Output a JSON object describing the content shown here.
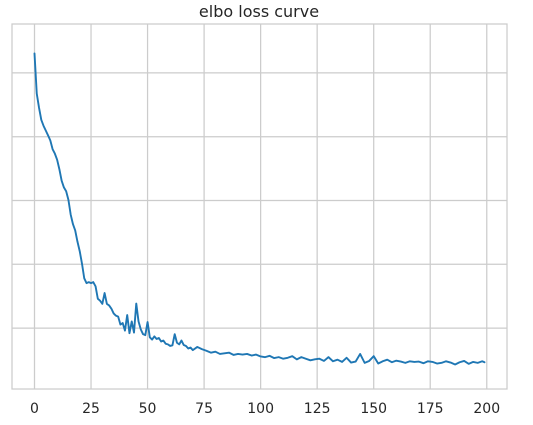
{
  "chart_data": {
    "type": "line",
    "title": "elbo loss curve",
    "xlabel": "",
    "ylabel": "",
    "xlim": [
      -9.95,
      208.95
    ],
    "ylim": [
      0,
      1
    ],
    "xticks": [
      0,
      25,
      50,
      75,
      100,
      125,
      150,
      175,
      200
    ],
    "xtick_labels": [
      "0",
      "25",
      "50",
      "75",
      "100",
      "125",
      "150",
      "175",
      "200"
    ],
    "y_gridlines": [
      0.1,
      0.3,
      0.5,
      0.7,
      0.9
    ],
    "grid": true,
    "y_values_normalized": true,
    "colors": {
      "line": "#1f77b4",
      "grid": "#cccccc",
      "spine": "#cccccc",
      "background": "#ffffff"
    },
    "series": [
      {
        "name": "",
        "x": [
          0,
          1,
          2,
          3,
          4,
          5,
          6,
          7,
          8,
          9,
          10,
          11,
          12,
          13,
          14,
          15,
          16,
          17,
          18,
          19,
          20,
          21,
          22,
          23,
          24,
          25,
          26,
          27,
          28,
          29,
          30,
          31,
          32,
          33,
          34,
          35,
          36,
          37,
          38,
          39,
          40,
          41,
          42,
          43,
          44,
          45,
          46,
          47,
          48,
          49,
          50,
          51,
          52,
          53,
          54,
          55,
          56,
          57,
          58,
          59,
          60,
          61,
          62,
          63,
          64,
          65,
          66,
          67,
          68,
          69,
          70,
          72,
          74,
          76,
          78,
          80,
          82,
          84,
          86,
          88,
          90,
          92,
          94,
          96,
          98,
          100,
          102,
          104,
          106,
          108,
          110,
          112,
          114,
          116,
          118,
          120,
          122,
          124,
          126,
          128,
          130,
          132,
          134,
          136,
          138,
          140,
          142,
          144,
          146,
          148,
          150,
          152,
          154,
          156,
          158,
          160,
          162,
          164,
          166,
          168,
          170,
          172,
          174,
          176,
          178,
          180,
          182,
          184,
          186,
          188,
          190,
          192,
          194,
          196,
          198,
          199
        ],
        "values": [
          0.961,
          0.835,
          0.791,
          0.753,
          0.734,
          0.719,
          0.704,
          0.688,
          0.661,
          0.647,
          0.628,
          0.598,
          0.562,
          0.541,
          0.529,
          0.502,
          0.456,
          0.426,
          0.406,
          0.371,
          0.341,
          0.302,
          0.256,
          0.241,
          0.244,
          0.241,
          0.244,
          0.231,
          0.192,
          0.186,
          0.176,
          0.21,
          0.176,
          0.171,
          0.161,
          0.146,
          0.139,
          0.136,
          0.111,
          0.116,
          0.092,
          0.141,
          0.084,
          0.121,
          0.086,
          0.177,
          0.121,
          0.096,
          0.081,
          0.078,
          0.119,
          0.071,
          0.064,
          0.074,
          0.066,
          0.069,
          0.058,
          0.061,
          0.051,
          0.049,
          0.044,
          0.046,
          0.081,
          0.054,
          0.049,
          0.061,
          0.047,
          0.044,
          0.036,
          0.039,
          0.031,
          0.041,
          0.034,
          0.029,
          0.023,
          0.026,
          0.019,
          0.021,
          0.023,
          0.016,
          0.019,
          0.017,
          0.019,
          0.014,
          0.017,
          0.011,
          0.009,
          0.013,
          0.006,
          0.009,
          0.004,
          0.007,
          0.012,
          0.002,
          0.009,
          0.004,
          -0.001,
          0.002,
          0.004,
          -0.003,
          0.009,
          -0.004,
          0.001,
          -0.006,
          0.007,
          -0.008,
          -0.005,
          0.019,
          -0.009,
          -0.003,
          0.012,
          -0.011,
          -0.004,
          0.001,
          -0.007,
          -0.002,
          -0.005,
          -0.009,
          -0.004,
          -0.006,
          -0.005,
          -0.01,
          -0.004,
          -0.006,
          -0.011,
          -0.009,
          -0.004,
          -0.008,
          -0.014,
          -0.007,
          -0.003,
          -0.012,
          -0.006,
          -0.009,
          -0.004,
          -0.007
        ]
      }
    ]
  }
}
